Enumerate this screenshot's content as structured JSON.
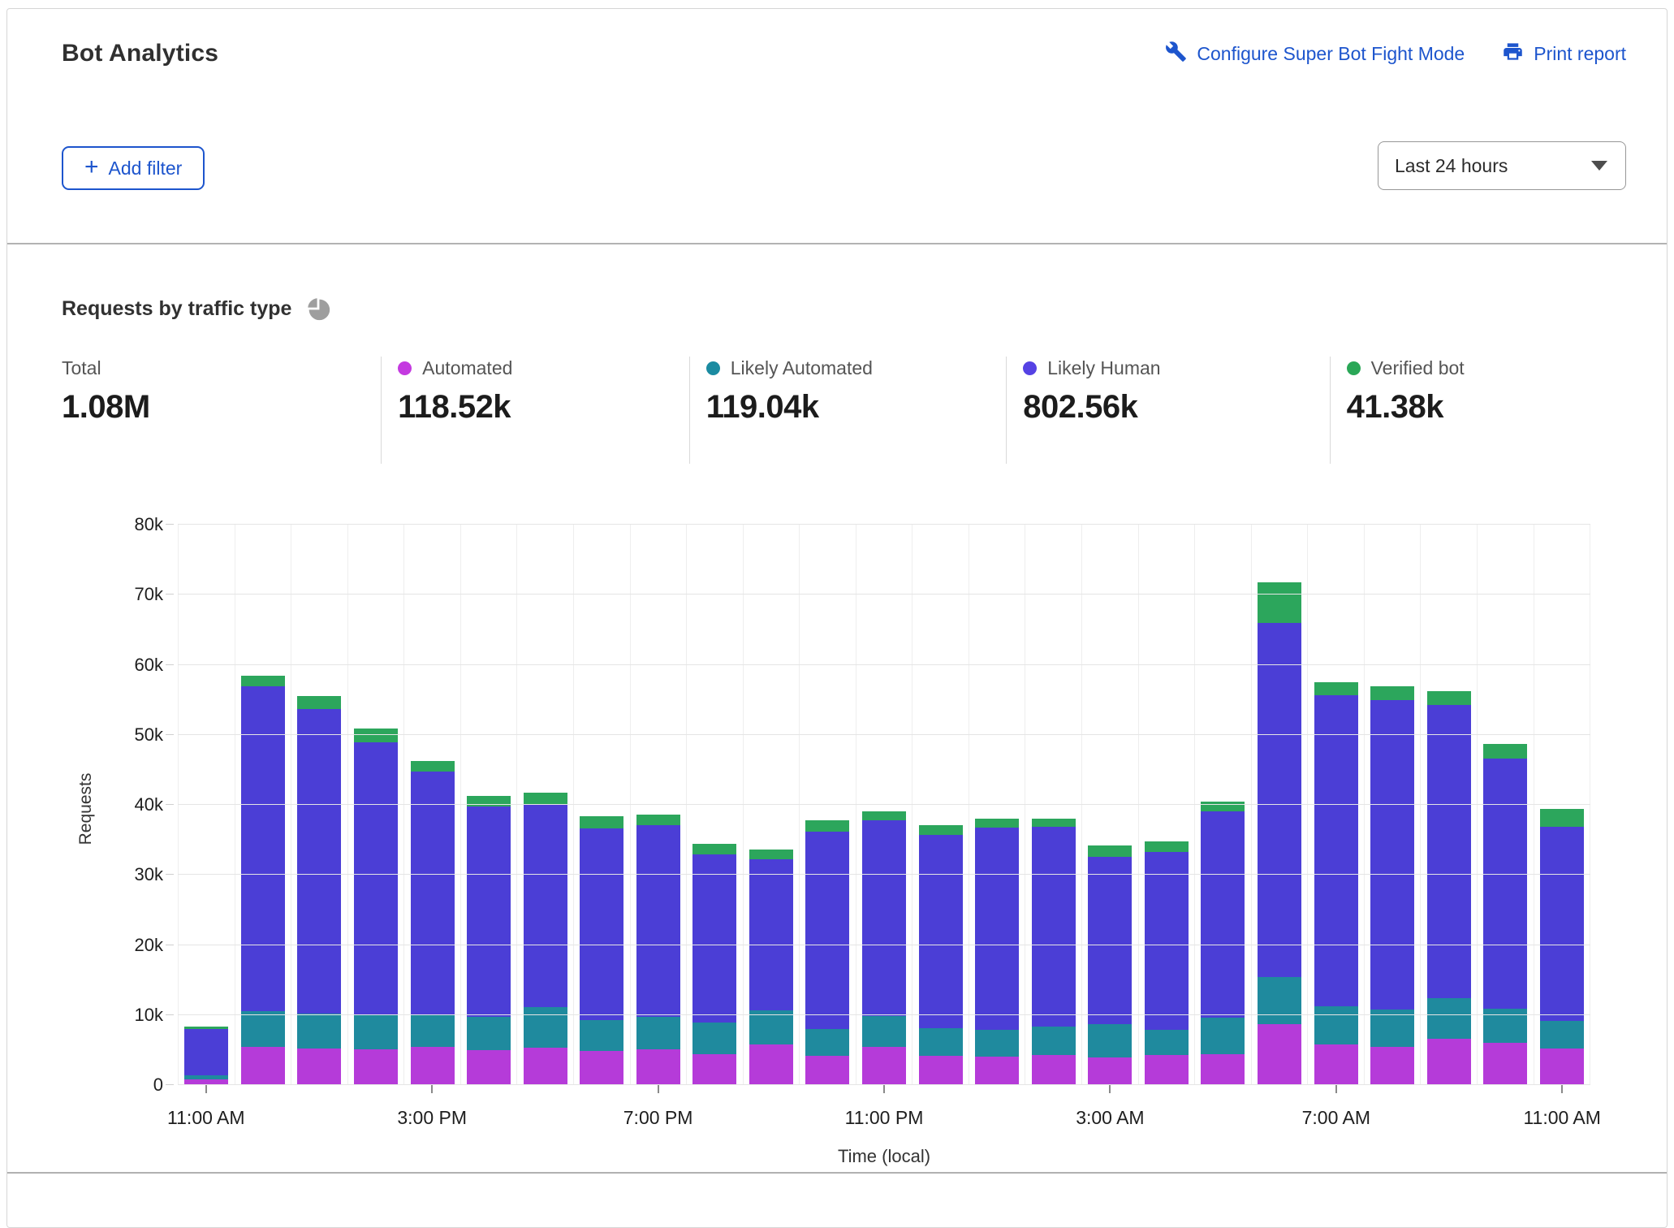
{
  "header": {
    "title": "Bot Analytics",
    "configure_link": "Configure Super Bot Fight Mode",
    "print_link": "Print report",
    "add_filter_label": "Add filter",
    "plus_glyph": "+",
    "time_range_value": "Last 24 hours",
    "accent_color": "#1d55cd"
  },
  "section": {
    "title": "Requests by traffic type",
    "icon": "pie-chart-icon"
  },
  "stats": [
    {
      "label": "Total",
      "value": "1.08M",
      "color": null
    },
    {
      "label": "Automated",
      "value": "118.52k",
      "color": "#c43ae0"
    },
    {
      "label": "Likely Automated",
      "value": "119.04k",
      "color": "#1b8ba1"
    },
    {
      "label": "Likely Human",
      "value": "802.56k",
      "color": "#5542e4"
    },
    {
      "label": "Verified bot",
      "value": "41.38k",
      "color": "#2aa757"
    }
  ],
  "chart_data": {
    "type": "bar",
    "stacked": true,
    "title": "Requests by traffic type",
    "xlabel": "Time (local)",
    "ylabel": "Requests",
    "unit": "thousands of requests per hour",
    "ylim": [
      0,
      80
    ],
    "grid": true,
    "ytick_labels": [
      "0",
      "10k",
      "20k",
      "30k",
      "40k",
      "50k",
      "60k",
      "70k",
      "80k"
    ],
    "num_bars": 25,
    "xticks": [
      {
        "bar_index": 0,
        "label": "11:00 AM"
      },
      {
        "bar_index": 4,
        "label": "3:00 PM"
      },
      {
        "bar_index": 8,
        "label": "7:00 PM"
      },
      {
        "bar_index": 12,
        "label": "11:00 PM"
      },
      {
        "bar_index": 16,
        "label": "3:00 AM"
      },
      {
        "bar_index": 20,
        "label": "7:00 AM"
      },
      {
        "bar_index": 24,
        "label": "11:00 AM"
      }
    ],
    "series": [
      {
        "name": "Automated",
        "color": "#b53bd9",
        "values": [
          0.8,
          5.5,
          5.2,
          5.1,
          5.4,
          5.0,
          5.3,
          4.9,
          5.1,
          4.4,
          5.8,
          4.2,
          5.4,
          4.2,
          4.1,
          4.3,
          4.0,
          4.3,
          4.4,
          8.7,
          5.8,
          5.4,
          6.6,
          6.0,
          5.2
        ]
      },
      {
        "name": "Likely Automated",
        "color": "#1f8a9e",
        "values": [
          0.6,
          5.0,
          5.0,
          4.9,
          4.7,
          4.7,
          5.8,
          4.4,
          4.6,
          4.5,
          4.9,
          3.8,
          4.5,
          3.9,
          3.8,
          4.0,
          4.7,
          3.6,
          5.2,
          6.7,
          5.5,
          5.4,
          5.8,
          4.9,
          4.0
        ]
      },
      {
        "name": "Likely Human",
        "color": "#4b3ed6",
        "values": [
          6.6,
          46.4,
          43.5,
          38.9,
          34.7,
          30.1,
          29.0,
          27.4,
          27.4,
          24.0,
          21.5,
          28.2,
          27.9,
          27.6,
          28.8,
          28.6,
          23.9,
          25.4,
          29.5,
          50.6,
          44.3,
          44.2,
          41.9,
          35.7,
          27.7
        ]
      },
      {
        "name": "Verified bot",
        "color": "#2ca65c",
        "values": [
          0.3,
          1.5,
          1.8,
          2.0,
          1.5,
          1.5,
          1.6,
          1.7,
          1.5,
          1.5,
          1.4,
          1.6,
          1.3,
          1.4,
          1.3,
          1.1,
          1.6,
          1.5,
          1.4,
          5.8,
          1.9,
          1.9,
          1.9,
          2.1,
          2.5
        ]
      }
    ]
  }
}
